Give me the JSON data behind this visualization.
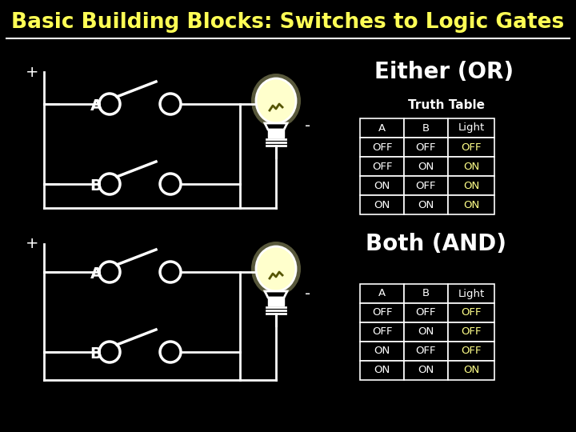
{
  "title": "Basic Building Blocks: Switches to Logic Gates",
  "title_color": "#FFFF55",
  "background_color": "#000000",
  "or_label": "Either (OR)",
  "and_label": "Both (AND)",
  "truth_table_label": "Truth Table",
  "or_table": {
    "headers": [
      "A",
      "B",
      "Light"
    ],
    "rows": [
      [
        "OFF",
        "OFF",
        "OFF"
      ],
      [
        "OFF",
        "ON",
        "ON"
      ],
      [
        "ON",
        "OFF",
        "ON"
      ],
      [
        "ON",
        "ON",
        "ON"
      ]
    ],
    "light_off_color": "#FFFF88",
    "light_on_color": "#FFFF88"
  },
  "and_table": {
    "headers": [
      "A",
      "B",
      "Light"
    ],
    "rows": [
      [
        "OFF",
        "OFF",
        "OFF"
      ],
      [
        "OFF",
        "ON",
        "OFF"
      ],
      [
        "ON",
        "OFF",
        "OFF"
      ],
      [
        "ON",
        "ON",
        "ON"
      ]
    ],
    "light_off_color": "#FFFF88",
    "light_on_color": "#FFFF88"
  },
  "bulb_fill": "#FFFFCC",
  "white": "#FFFFFF",
  "yellow": "#FFFF55",
  "dark_yellow": "#AAAA00"
}
